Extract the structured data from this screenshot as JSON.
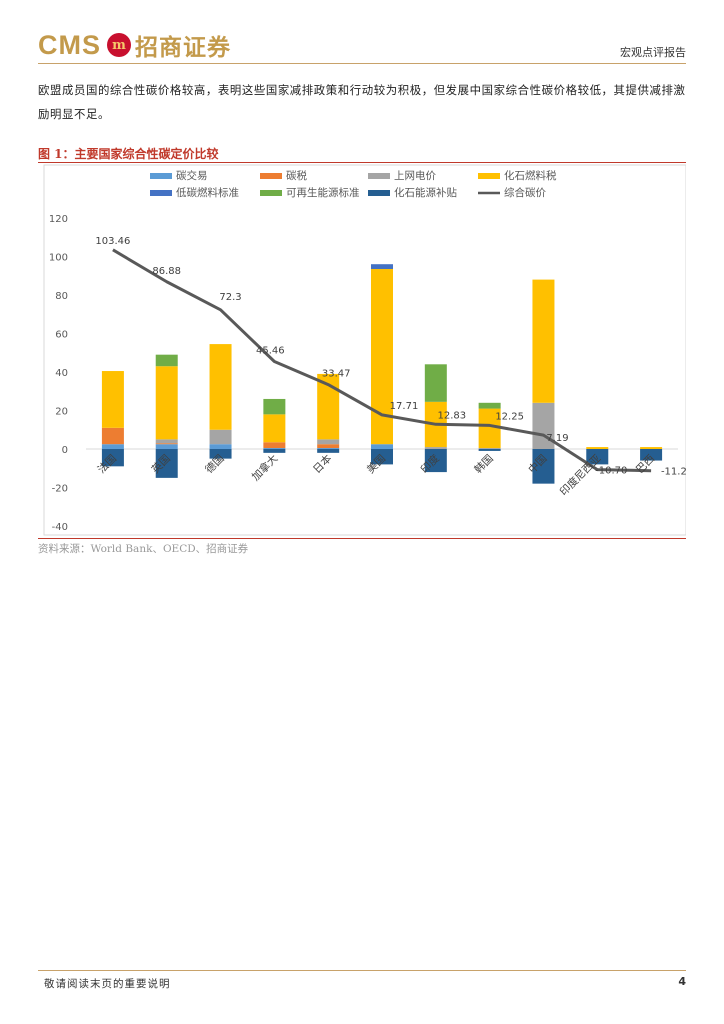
{
  "header": {
    "logo_text": "CMS",
    "logo_badge": "m",
    "company_name": "招商证券",
    "report_type": "宏观点评报告"
  },
  "body": {
    "paragraph": "欧盟成员国的综合性碳价格较高，表明这些国家减排政策和行动较为积极，但发展中国家综合性碳价格较低，其提供减排激励明显不足。"
  },
  "figure": {
    "title": "图 1：主要国家综合性碳定价比较",
    "source": "资料来源：World Bank、OECD、招商证券"
  },
  "footer": {
    "note": "敬请阅读末页的重要说明",
    "page_number": "4"
  },
  "colors": {
    "carbon_trading": "#5b9bd5",
    "carbon_tax": "#ed7d31",
    "grid_price": "#a5a5a5",
    "fossil_tax": "#ffc000",
    "low_carbon_std": "#4472c4",
    "renewable_std": "#70ad47",
    "fossil_subsidy": "#255e91",
    "composite_line": "#595959",
    "accent_red": "#c0392b",
    "gold": "#c39a4b"
  },
  "chart_data": {
    "type": "bar",
    "stacked": true,
    "categories": [
      "法国",
      "英国",
      "德国",
      "加拿大",
      "日本",
      "美国",
      "印度",
      "韩国",
      "中国",
      "印度尼西亚",
      "巴西"
    ],
    "ylim": [
      -40,
      120
    ],
    "yticks": [
      -40,
      -20,
      0,
      20,
      40,
      60,
      80,
      100,
      120
    ],
    "grid": false,
    "legend_position": "top",
    "series": [
      {
        "name": "碳交易",
        "key": "carbon_trading",
        "values": [
          2.5,
          2.5,
          2.5,
          0.5,
          0.5,
          2.5,
          0,
          0,
          0,
          0,
          0
        ]
      },
      {
        "name": "碳税",
        "key": "carbon_tax",
        "values": [
          8.5,
          0.5,
          0,
          3,
          2,
          0,
          0,
          0,
          0,
          0,
          0
        ]
      },
      {
        "name": "上网电价",
        "key": "grid_price",
        "values": [
          0,
          2,
          7.5,
          0,
          2.5,
          0,
          1,
          0.5,
          24,
          0,
          0
        ]
      },
      {
        "name": "化石燃料税",
        "key": "fossil_tax",
        "values": [
          29.5,
          38,
          44.5,
          14.5,
          34,
          91,
          23.5,
          20.5,
          64,
          1,
          1
        ]
      },
      {
        "name": "低碳燃料标准",
        "key": "low_carbon_std",
        "values": [
          0,
          0,
          0,
          0,
          0,
          2.5,
          0,
          0,
          0,
          0,
          0
        ]
      },
      {
        "name": "可再生能源标准",
        "key": "renewable_std",
        "values": [
          0,
          6,
          0,
          8,
          0,
          0,
          19.5,
          3,
          0,
          0,
          0
        ]
      },
      {
        "name": "化石能源补贴",
        "key": "fossil_subsidy",
        "values": [
          -9,
          -15,
          -5,
          -2,
          -2,
          -8,
          -12,
          -1,
          -18,
          -8,
          -6
        ]
      }
    ],
    "line": {
      "name": "综合碳价",
      "values": [
        103.46,
        86.88,
        72.3,
        45.46,
        33.47,
        17.71,
        12.83,
        12.25,
        7.19,
        -10.7,
        -11.29
      ],
      "labels": [
        "103.46",
        "86.88",
        "72.3",
        "45.46",
        "33.47",
        "17.71",
        "12.83",
        "12.25",
        "7.19",
        "-10.70",
        "-11.29"
      ]
    }
  }
}
